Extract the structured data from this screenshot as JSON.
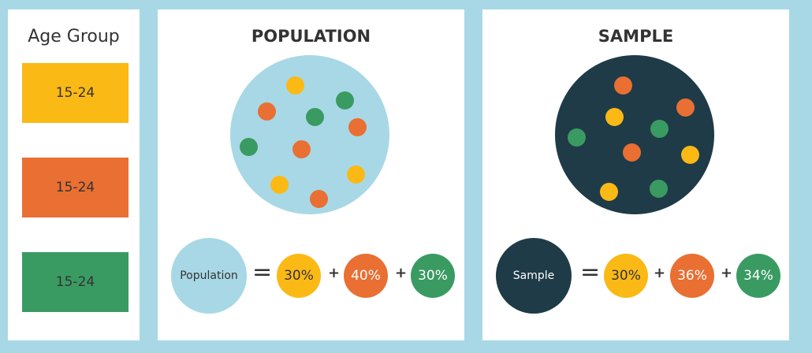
{
  "colors": {
    "yellow": "#fbb916",
    "orange": "#e96f33",
    "green": "#3a9b62",
    "light_blue": "#a8d8e6",
    "dark_navy": "#1f3b48"
  },
  "legend": {
    "title": "Age Group",
    "groups": [
      {
        "label": "15-24",
        "color": "yellow"
      },
      {
        "label": "15-24",
        "color": "orange"
      },
      {
        "label": "15-24",
        "color": "green"
      }
    ]
  },
  "population": {
    "title": "POPULATION",
    "label": "Population",
    "equals": "=",
    "plus": "+",
    "shares": [
      {
        "value": "30%",
        "color": "yellow"
      },
      {
        "value": "40%",
        "color": "orange"
      },
      {
        "value": "30%",
        "color": "green"
      }
    ]
  },
  "sample": {
    "title": "SAMPLE",
    "label": "Sample",
    "equals": "=",
    "plus": "+",
    "shares": [
      {
        "value": "30%",
        "color": "yellow"
      },
      {
        "value": "36%",
        "color": "orange"
      },
      {
        "value": "34%",
        "color": "green"
      }
    ]
  }
}
